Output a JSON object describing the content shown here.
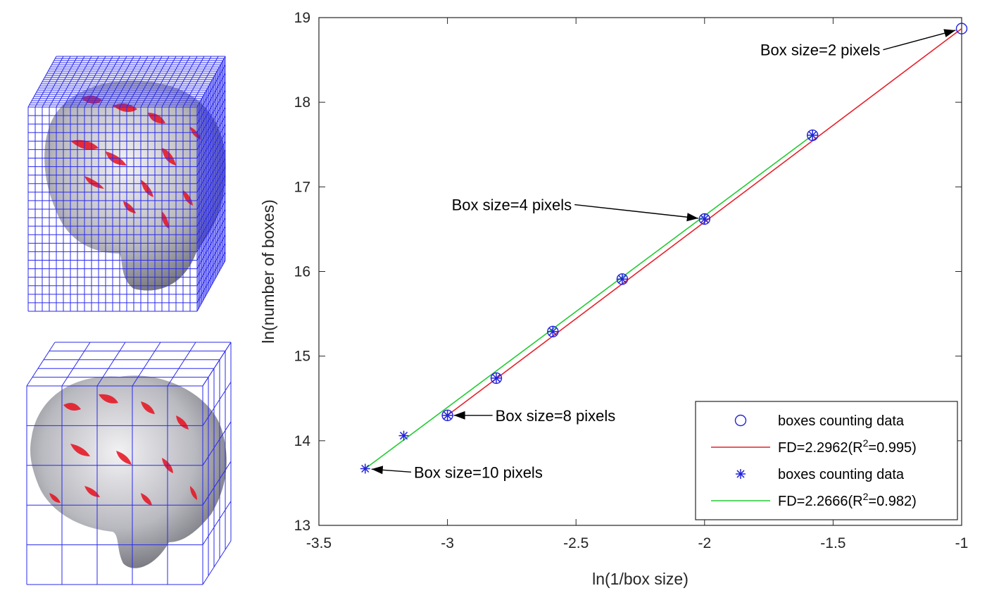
{
  "panels": {
    "fine_grid_caption": "",
    "coarse_grid_caption": ""
  },
  "chart_data": {
    "type": "scatter",
    "title": "",
    "xlabel": "ln(1/box size)",
    "ylabel": "ln(number of boxes)",
    "xlim": [
      -3.5,
      -1
    ],
    "ylim": [
      13,
      19
    ],
    "xticks": [
      -3.5,
      -3,
      -2.5,
      -2,
      -1.5,
      -1
    ],
    "xtick_labels": [
      "-3.5",
      "-3",
      "-2.5",
      "-2",
      "-1.5",
      "-1"
    ],
    "yticks": [
      13,
      14,
      15,
      16,
      17,
      18,
      19
    ],
    "ytick_labels": [
      "13",
      "14",
      "15",
      "16",
      "17",
      "18",
      "19"
    ],
    "grid": false,
    "legend_position": "bottom-right",
    "series": [
      {
        "name": "boxes counting data",
        "kind": "marker-circle",
        "color": "#2222dd",
        "x": [
          -3.0,
          -2.81,
          -2.59,
          -2.32,
          -2.0,
          -1.58,
          -1.0
        ],
        "y": [
          14.3,
          14.74,
          15.29,
          15.91,
          16.62,
          17.61,
          18.87
        ]
      },
      {
        "name": "FD=2.2962(R²=0.995)",
        "name_parts": {
          "prefix": "FD=2.2962(R",
          "sup": "2",
          "suffix": "=0.995)"
        },
        "kind": "line",
        "color": "#e8202a",
        "x": [
          -3.0,
          -1.0
        ],
        "y": [
          14.3,
          18.87
        ]
      },
      {
        "name": "boxes counting data",
        "kind": "marker-star",
        "color": "#2222dd",
        "x": [
          -3.32,
          -3.17,
          -3.0,
          -2.81,
          -2.59,
          -2.32,
          -2.0,
          -1.58
        ],
        "y": [
          13.67,
          14.06,
          14.3,
          14.74,
          15.29,
          15.91,
          16.62,
          17.61
        ]
      },
      {
        "name": "FD=2.2666(R²=0.982)",
        "name_parts": {
          "prefix": "FD=2.2666(R",
          "sup": "2",
          "suffix": "=0.982)"
        },
        "kind": "line",
        "color": "#22cc33",
        "x": [
          -3.32,
          -1.58
        ],
        "y": [
          13.67,
          17.61
        ]
      }
    ],
    "annotations": [
      {
        "text": "Box size=2 pixels",
        "point": [
          -1.0,
          18.87
        ],
        "label_at": [
          -1.55,
          18.62
        ],
        "anchor": "middle"
      },
      {
        "text": "Box size=4 pixels",
        "point": [
          -2.0,
          16.62
        ],
        "label_at": [
          -2.75,
          16.79
        ],
        "anchor": "middle"
      },
      {
        "text": "Box size=8 pixels",
        "point": [
          -3.0,
          14.3
        ],
        "label_at": [
          -2.58,
          14.3
        ],
        "anchor": "middle"
      },
      {
        "text": "Box size=10 pixels",
        "point": [
          -3.32,
          13.67
        ],
        "label_at": [
          -2.88,
          13.63
        ],
        "anchor": "middle"
      }
    ]
  }
}
